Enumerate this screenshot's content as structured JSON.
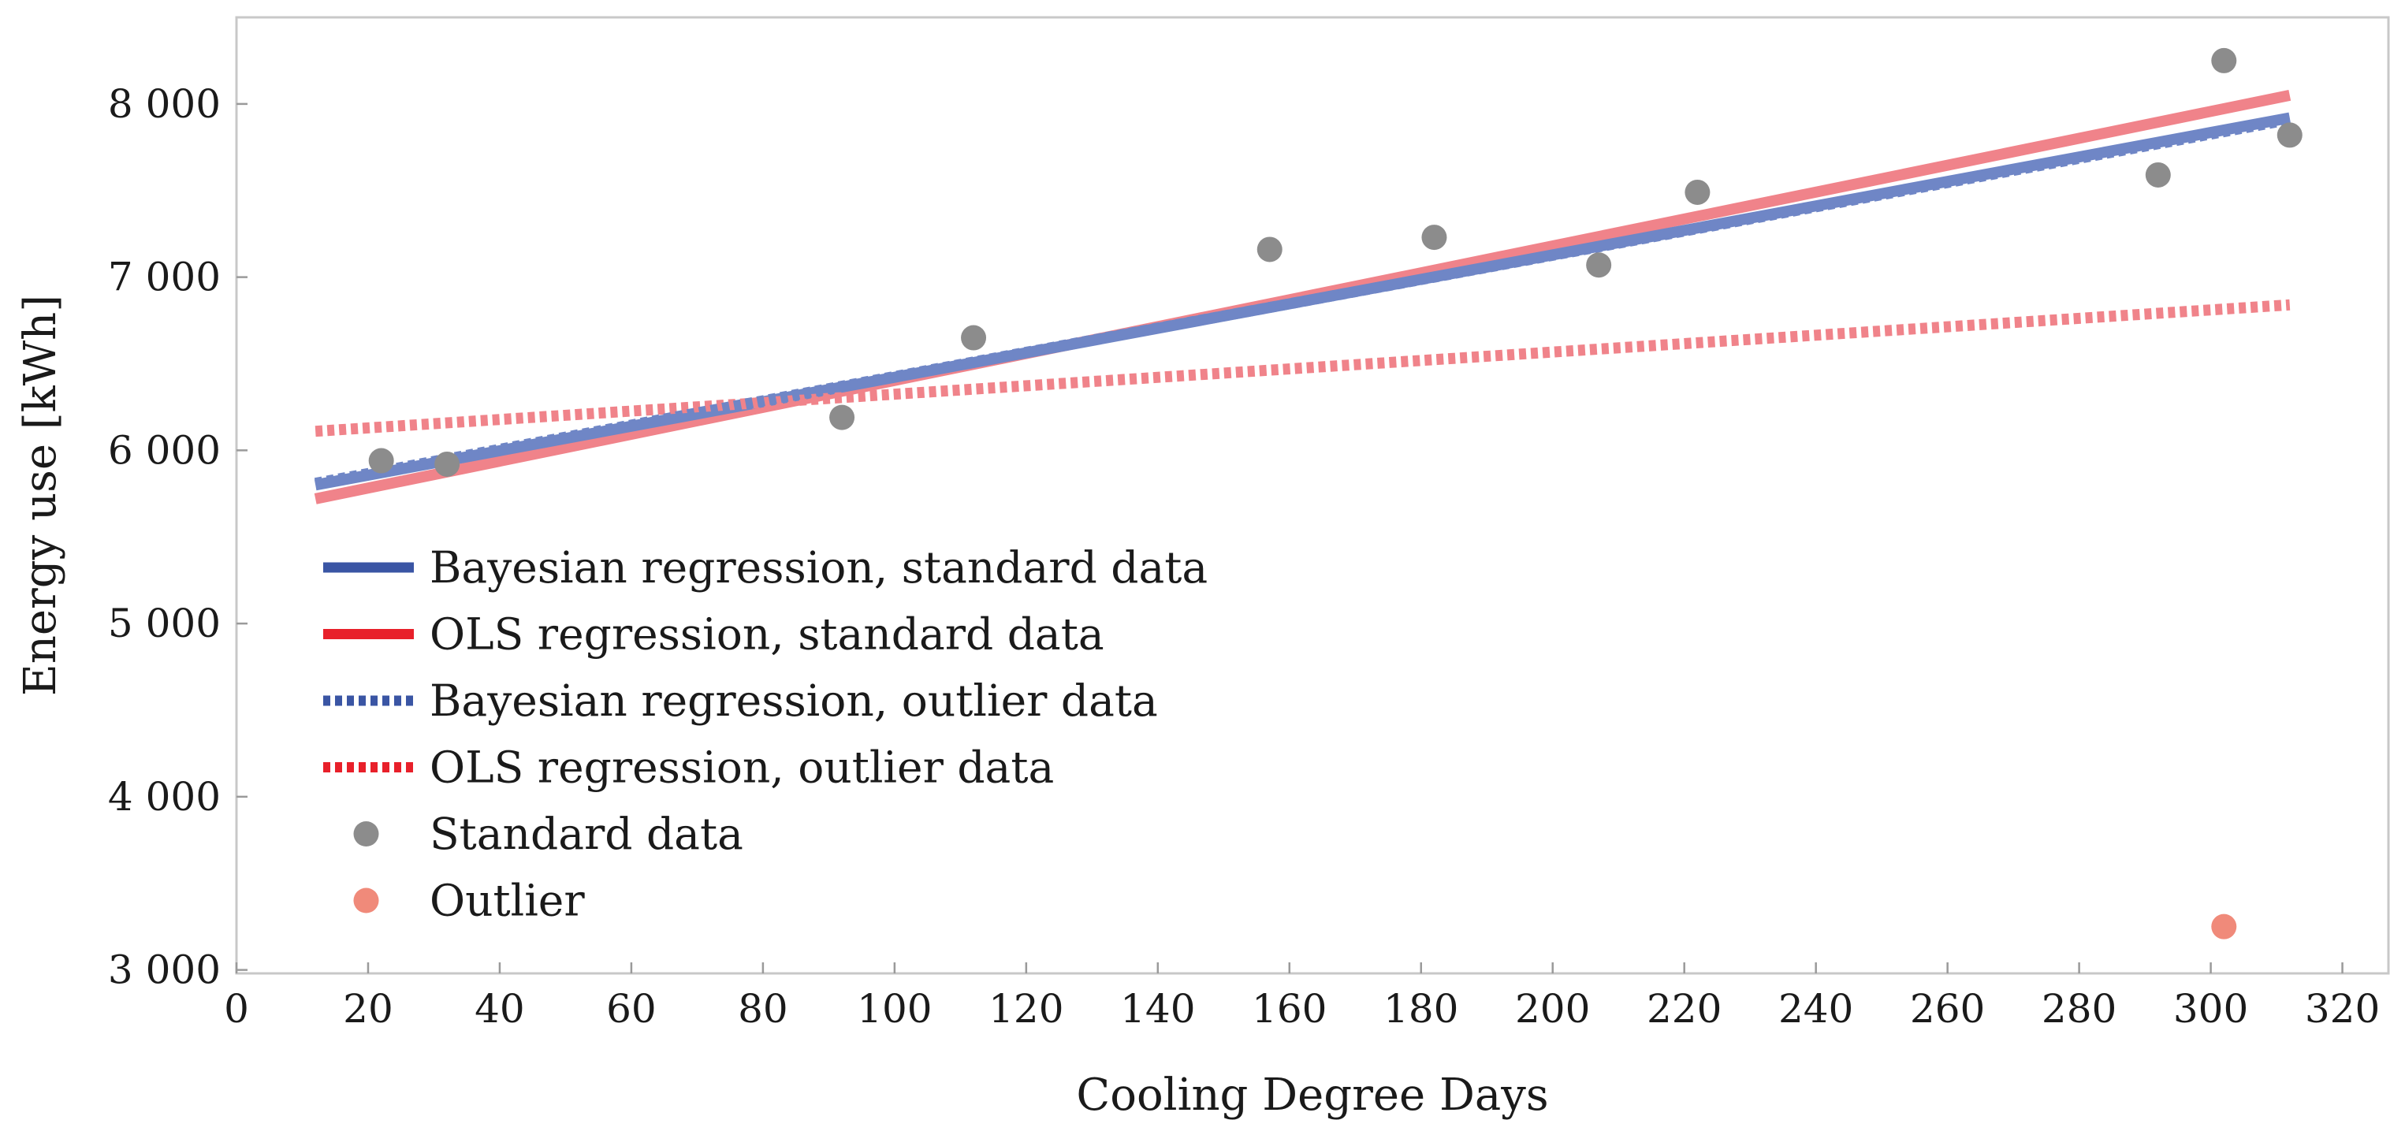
{
  "chart_data": {
    "type": "scatter",
    "title": "",
    "xlabel": "Cooling Degree Days",
    "ylabel": "Energy use [kWh]",
    "xlim": [
      0,
      327
    ],
    "ylim": [
      2980,
      8500
    ],
    "x_ticks": [
      0,
      20,
      40,
      60,
      80,
      100,
      120,
      140,
      160,
      180,
      200,
      220,
      240,
      260,
      280,
      300,
      320
    ],
    "y_ticks": [
      3000,
      4000,
      5000,
      6000,
      7000,
      8000
    ],
    "y_tick_labels": [
      "3 000",
      "4 000",
      "5 000",
      "6 000",
      "7 000",
      "8 000"
    ],
    "grid": false,
    "legend_position": "left",
    "series": [
      {
        "name": "Bayesian regression, standard data",
        "kind": "line",
        "style": "solid",
        "color": "#3a55a4",
        "x": [
          12,
          312
        ],
        "y": [
          5800,
          7920
        ]
      },
      {
        "name": "OLS regression, standard data",
        "kind": "line",
        "style": "solid",
        "color": "#e8202a",
        "x": [
          12,
          312
        ],
        "y": [
          5720,
          8050
        ]
      },
      {
        "name": "Bayesian regression, outlier data",
        "kind": "line",
        "style": "dotted",
        "color": "#3a55a4",
        "x": [
          12,
          312
        ],
        "y": [
          5810,
          7910
        ]
      },
      {
        "name": "OLS regression, outlier data",
        "kind": "line",
        "style": "dotted",
        "color": "#e8202a",
        "x": [
          12,
          312
        ],
        "y": [
          6110,
          6840
        ]
      },
      {
        "name": "Standard data",
        "kind": "scatter",
        "color": "#8c8c8c",
        "x": [
          22,
          32,
          92,
          112,
          157,
          182,
          207,
          222,
          292,
          302,
          312
        ],
        "y": [
          5940,
          5920,
          6190,
          6650,
          7160,
          7230,
          7070,
          7490,
          7590,
          8250,
          7820
        ]
      },
      {
        "name": "Outlier",
        "kind": "scatter",
        "color": "#f08a7a",
        "x": [
          302
        ],
        "y": [
          3250
        ]
      }
    ]
  }
}
